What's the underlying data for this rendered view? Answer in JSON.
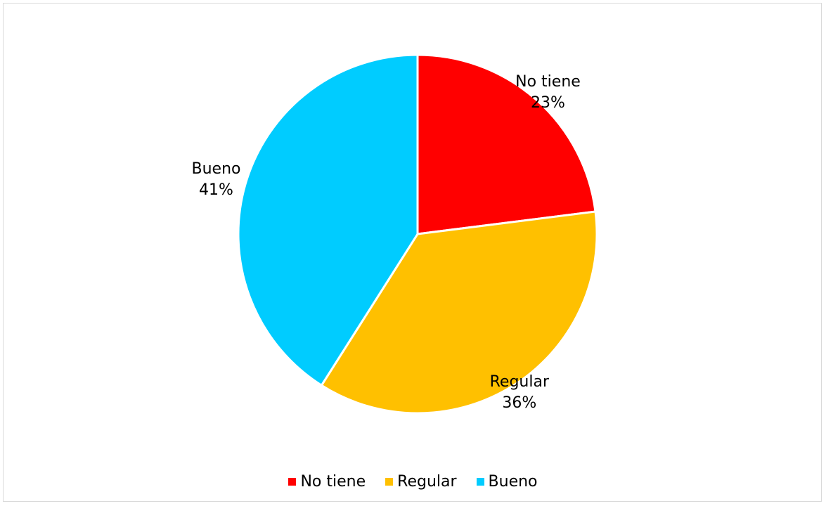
{
  "chart_data": {
    "type": "pie",
    "title": "",
    "categories": [
      "No tiene",
      "Regular",
      "Bueno"
    ],
    "values": [
      23,
      36,
      41
    ],
    "value_labels": [
      "23%",
      "36%",
      "41%"
    ],
    "colors": [
      "#ff0000",
      "#ffc000",
      "#00ccff"
    ],
    "start_angle_deg": 0,
    "direction": "clockwise",
    "legend": "bottom",
    "slice_border_color": "#ffffff"
  }
}
